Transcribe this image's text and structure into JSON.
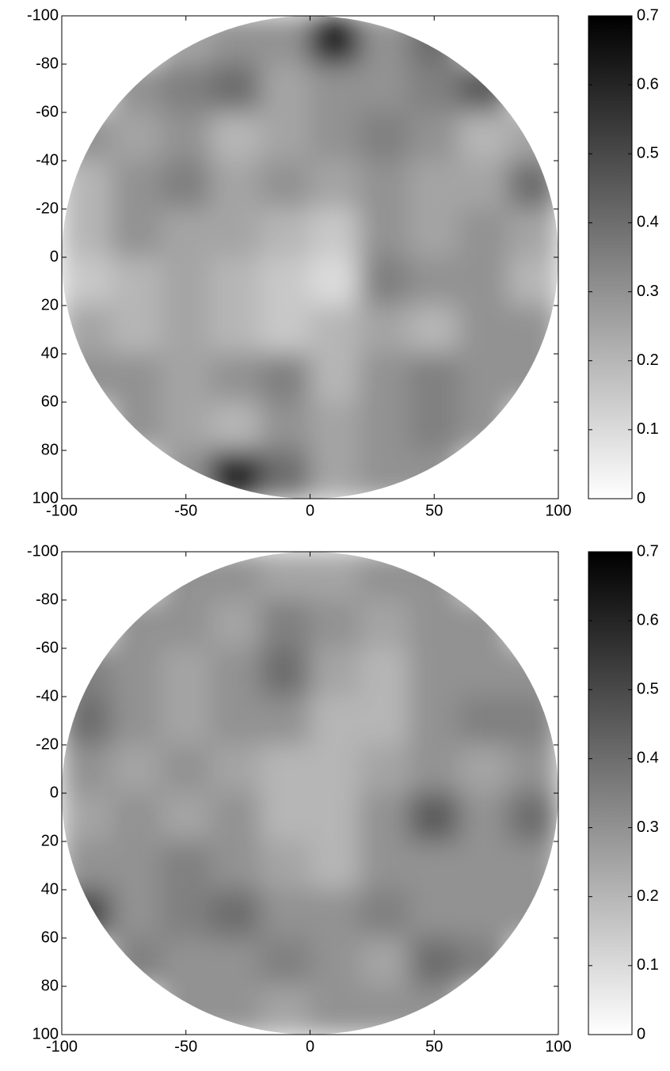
{
  "chart_data": [
    {
      "type": "heatmap",
      "colormap": "gray-reversed",
      "yaxis_reversed": true,
      "x": [
        -90,
        -70,
        -50,
        -30,
        -10,
        10,
        30,
        50,
        70,
        90
      ],
      "y": [
        -90,
        -70,
        -50,
        -30,
        -10,
        10,
        30,
        50,
        70,
        90
      ],
      "z": [
        [
          null,
          null,
          0.25,
          0.3,
          0.3,
          0.6,
          0.3,
          0.4,
          null,
          null
        ],
        [
          null,
          0.3,
          0.35,
          0.4,
          0.25,
          0.3,
          0.3,
          0.35,
          0.45,
          null
        ],
        [
          0.3,
          0.25,
          0.3,
          0.2,
          0.25,
          0.3,
          0.35,
          0.3,
          0.2,
          0.25
        ],
        [
          0.2,
          0.3,
          0.35,
          0.25,
          0.3,
          0.25,
          0.3,
          0.25,
          0.25,
          0.4
        ],
        [
          0.2,
          0.3,
          0.25,
          0.25,
          0.2,
          0.15,
          0.3,
          0.25,
          0.3,
          0.25
        ],
        [
          0.15,
          0.2,
          0.25,
          0.2,
          0.15,
          0.1,
          0.35,
          0.3,
          0.3,
          0.2
        ],
        [
          0.25,
          0.2,
          0.25,
          0.2,
          0.15,
          0.2,
          0.25,
          0.2,
          0.3,
          0.3
        ],
        [
          0.3,
          0.3,
          0.25,
          0.3,
          0.35,
          0.2,
          0.3,
          0.35,
          0.3,
          0.3
        ],
        [
          null,
          0.3,
          0.25,
          0.2,
          0.3,
          0.25,
          0.3,
          0.35,
          0.3,
          null
        ],
        [
          null,
          null,
          0.3,
          0.6,
          0.4,
          0.25,
          0.3,
          0.3,
          null,
          null
        ]
      ],
      "xlim": [
        -100,
        100
      ],
      "ylim": [
        -100,
        100
      ],
      "xticks": [
        -100,
        -50,
        0,
        50,
        100
      ],
      "yticks": [
        -100,
        -80,
        -60,
        -40,
        -20,
        0,
        20,
        40,
        60,
        80,
        100
      ],
      "clim": [
        0,
        0.7
      ],
      "cticks": [
        0,
        0.1,
        0.2,
        0.3,
        0.4,
        0.5,
        0.6,
        0.7
      ]
    },
    {
      "type": "heatmap",
      "colormap": "gray-reversed",
      "yaxis_reversed": true,
      "x": [
        -90,
        -70,
        -50,
        -30,
        -10,
        10,
        30,
        50,
        70,
        90
      ],
      "y": [
        -90,
        -70,
        -50,
        -30,
        -10,
        10,
        30,
        50,
        70,
        90
      ],
      "z": [
        [
          null,
          null,
          0.3,
          0.3,
          0.25,
          0.25,
          0.3,
          0.3,
          null,
          null
        ],
        [
          null,
          0.3,
          0.3,
          0.25,
          0.35,
          0.3,
          0.25,
          0.3,
          0.3,
          null
        ],
        [
          0.35,
          0.3,
          0.25,
          0.3,
          0.4,
          0.25,
          0.2,
          0.3,
          0.3,
          0.3
        ],
        [
          0.4,
          0.3,
          0.25,
          0.3,
          0.3,
          0.2,
          0.2,
          0.3,
          0.35,
          0.35
        ],
        [
          0.3,
          0.25,
          0.3,
          0.25,
          0.2,
          0.2,
          0.25,
          0.3,
          0.25,
          0.3
        ],
        [
          0.25,
          0.3,
          0.25,
          0.3,
          0.2,
          0.2,
          0.3,
          0.45,
          0.3,
          0.4
        ],
        [
          0.3,
          0.3,
          0.35,
          0.3,
          0.25,
          0.2,
          0.3,
          0.3,
          0.3,
          0.3
        ],
        [
          0.5,
          0.3,
          0.35,
          0.4,
          0.3,
          0.3,
          0.35,
          0.3,
          0.3,
          0.3
        ],
        [
          null,
          0.35,
          0.3,
          0.3,
          0.35,
          0.3,
          0.25,
          0.4,
          0.35,
          null
        ],
        [
          null,
          null,
          0.3,
          0.3,
          0.25,
          0.3,
          0.3,
          0.3,
          null,
          null
        ]
      ],
      "xlim": [
        -100,
        100
      ],
      "ylim": [
        -100,
        100
      ],
      "xticks": [
        -100,
        -50,
        0,
        50,
        100
      ],
      "yticks": [
        -100,
        -80,
        -60,
        -40,
        -20,
        0,
        20,
        40,
        60,
        80,
        100
      ],
      "clim": [
        0,
        0.7
      ],
      "cticks": [
        0,
        0.1,
        0.2,
        0.3,
        0.4,
        0.5,
        0.6,
        0.7
      ]
    }
  ]
}
